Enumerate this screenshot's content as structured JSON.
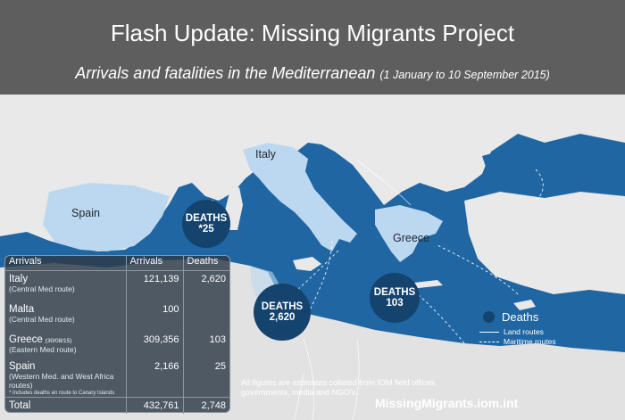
{
  "header": {
    "title": "Flash Update: Missing Migrants Project",
    "subtitle_main": "Arrivals and fatalities in the Mediterranean",
    "subtitle_dates": "(1 January to 10 September 2015)"
  },
  "map": {
    "countries": {
      "italy": "Italy",
      "spain": "Spain",
      "greece": "Greece"
    },
    "deaths_markers": [
      {
        "label": "DEATHS",
        "value": "*25"
      },
      {
        "label": "DEATHS",
        "value": "2,620"
      },
      {
        "label": "DEATHS",
        "value": "103"
      }
    ],
    "colors": {
      "sea": "#1e6aa8",
      "land": "#ececec",
      "highlight": "#bcd8f0",
      "marker": "#14436d"
    }
  },
  "table": {
    "headers": [
      "Arrivals",
      "Arrivals",
      "Deaths"
    ],
    "rows": [
      {
        "name": "Italy",
        "route": "(Central Med route)",
        "arrivals": "121,139",
        "deaths": "2,620"
      },
      {
        "name": "Malta",
        "route": "(Central Med route)",
        "arrivals": "100",
        "deaths": ""
      },
      {
        "name": "Greece",
        "date": "(30/08/15)",
        "route": "(Eastern Med route)",
        "arrivals": "309,356",
        "deaths": "103"
      },
      {
        "name": "Spain",
        "route": "(Western Med. and West Africa routes)",
        "footnote": "* Includes deaths en route to Canary Islands",
        "arrivals": "2,166",
        "deaths": "25"
      }
    ],
    "total": {
      "label": "Total",
      "arrivals": "432,761",
      "deaths": "2,748"
    }
  },
  "legend": {
    "title": "Deaths",
    "land": "Land routes",
    "maritime": "Maritime routes"
  },
  "note": "All figures are estimates collated from IOM field offices, governments, media and NGO's.",
  "website": "MissingMigrants.iom.int"
}
